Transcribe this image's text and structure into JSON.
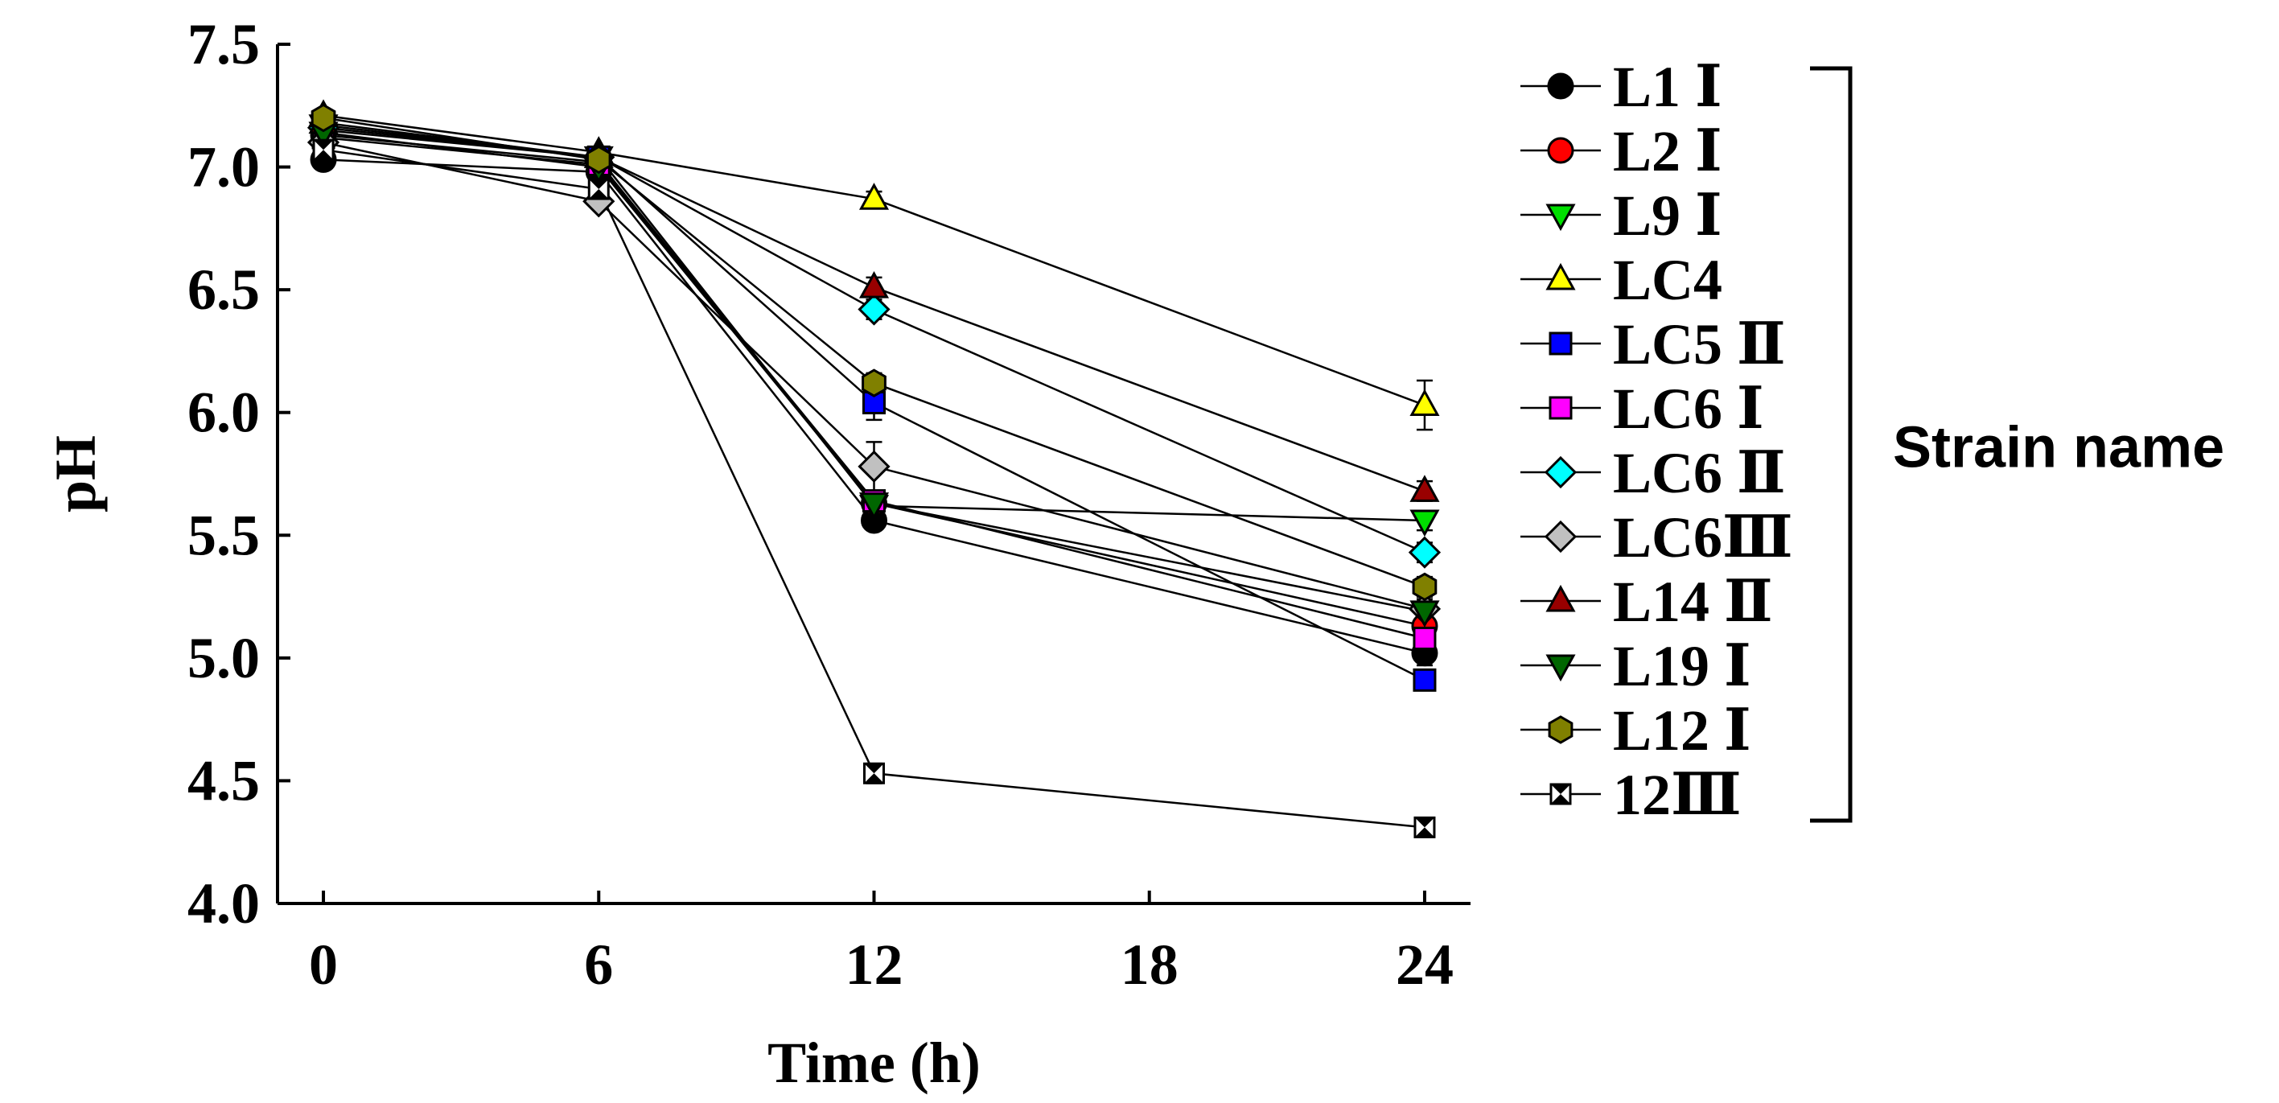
{
  "chart_data": {
    "type": "line",
    "title": "",
    "xlabel": "Time (h)",
    "ylabel": "pH",
    "x": [
      0,
      6,
      12,
      24
    ],
    "xlim": [
      -1,
      25
    ],
    "xticks": [
      0,
      6,
      12,
      18,
      24
    ],
    "xtick_labels": [
      "0",
      "6",
      "12",
      "18",
      "24"
    ],
    "ylim": [
      4.0,
      7.5
    ],
    "yticks": [
      4.0,
      4.5,
      5.0,
      5.5,
      6.0,
      6.5,
      7.0,
      7.5
    ],
    "ytick_labels": [
      "4.0",
      "4.5",
      "5.0",
      "5.5",
      "6.0",
      "6.5",
      "7.0",
      "7.5"
    ],
    "grid": false,
    "legend_position": "right",
    "legend_group_label": "Strain name",
    "series": [
      {
        "name": "L1 Ⅰ",
        "marker": "circle",
        "color": "#000000",
        "values": [
          7.03,
          6.98,
          5.56,
          5.02
        ],
        "errors": [
          0.02,
          0.02,
          0.03,
          0.05
        ]
      },
      {
        "name": "L2 Ⅰ",
        "marker": "circle",
        "color": "#ff0000",
        "values": [
          7.13,
          7.02,
          5.63,
          5.13
        ],
        "errors": [
          0.02,
          0.02,
          0.03,
          0.04
        ]
      },
      {
        "name": "L9 Ⅰ",
        "marker": "triangle-down",
        "color": "#00e000",
        "values": [
          7.17,
          7.04,
          5.62,
          5.56
        ],
        "errors": [
          0.02,
          0.02,
          0.03,
          0.04
        ]
      },
      {
        "name": "LC4",
        "marker": "triangle-up",
        "color": "#ffff00",
        "values": [
          7.21,
          7.06,
          6.87,
          6.03
        ],
        "errors": [
          0.02,
          0.02,
          0.03,
          0.1
        ]
      },
      {
        "name": "LC5 Ⅱ",
        "marker": "square",
        "color": "#0000ff",
        "values": [
          7.15,
          7.04,
          6.04,
          4.91
        ],
        "errors": [
          0.02,
          0.02,
          0.07,
          0.03
        ]
      },
      {
        "name": "LC6 Ⅰ",
        "marker": "square",
        "color": "#ff00ff",
        "values": [
          7.12,
          7.01,
          5.64,
          5.08
        ],
        "errors": [
          0.02,
          0.02,
          0.03,
          0.04
        ]
      },
      {
        "name": "LC6 Ⅱ",
        "marker": "diamond",
        "color": "#00ffff",
        "values": [
          7.16,
          7.04,
          6.42,
          5.43
        ],
        "errors": [
          0.02,
          0.02,
          0.04,
          0.04
        ]
      },
      {
        "name": "LC6Ⅲ",
        "marker": "diamond",
        "color": "#c0c0c0",
        "values": [
          7.1,
          6.86,
          5.78,
          5.2
        ],
        "errors": [
          0.02,
          0.02,
          0.1,
          0.04
        ]
      },
      {
        "name": "L14 Ⅱ",
        "marker": "triangle-up",
        "color": "#990000",
        "values": [
          7.18,
          7.04,
          6.51,
          5.68
        ],
        "errors": [
          0.02,
          0.02,
          0.04,
          0.04
        ]
      },
      {
        "name": "L19 Ⅰ",
        "marker": "triangle-down",
        "color": "#006600",
        "values": [
          7.14,
          7.0,
          5.63,
          5.19
        ],
        "errors": [
          0.02,
          0.02,
          0.03,
          0.04
        ]
      },
      {
        "name": "L12 Ⅰ",
        "marker": "hexagon",
        "color": "#808000",
        "values": [
          7.2,
          7.03,
          6.12,
          5.29
        ],
        "errors": [
          0.02,
          0.02,
          0.04,
          0.04
        ]
      },
      {
        "name": "12Ⅲ",
        "marker": "hourglass",
        "color": "#ffffff",
        "values": [
          7.07,
          6.91,
          4.53,
          4.31
        ],
        "errors": [
          0.02,
          0.02,
          0.04,
          0.03
        ]
      }
    ]
  }
}
